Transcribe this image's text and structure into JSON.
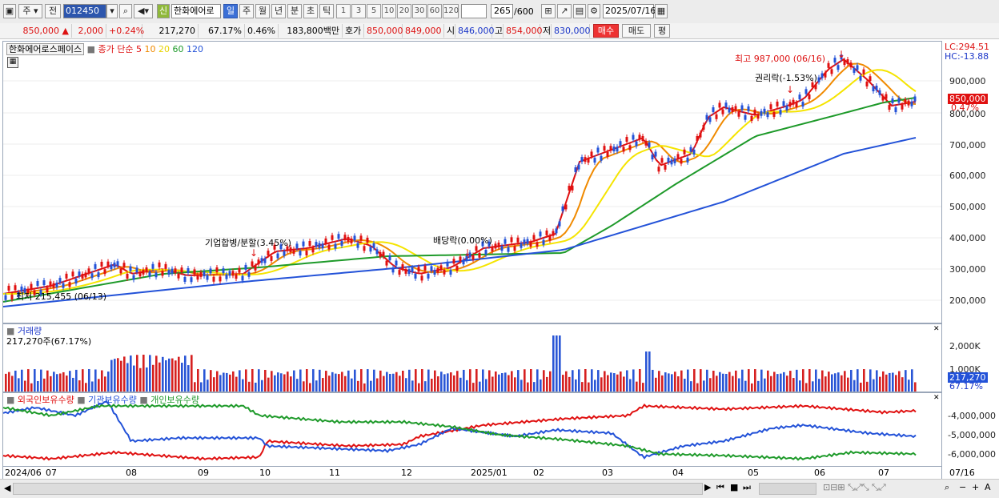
{
  "toolbar": {
    "market_type": "주",
    "prev_label": "전",
    "code": "012450",
    "new_badge": "신",
    "stock_name": "한화에어로",
    "periods": [
      "일",
      "주",
      "월",
      "년",
      "분",
      "초",
      "틱"
    ],
    "active_period": "일",
    "intervals": [
      "1",
      "3",
      "5",
      "10",
      "20",
      "30",
      "60",
      "120"
    ],
    "count": "265",
    "count_total": "/600",
    "date": "2025/07/16"
  },
  "quote": {
    "price": "850,000",
    "change": "2,000",
    "change_pct": "+0.24%",
    "volume": "217,270",
    "volume_ratio": "67.17%",
    "turnover": "0.46%",
    "amount": "183,800백만",
    "bid_label": "호가",
    "ask": "850,000",
    "bid": "849,000",
    "open_label": "시",
    "open": "846,000",
    "high_label": "고",
    "high": "854,000",
    "low_label": "저",
    "low": "830,000",
    "buy_label": "매수",
    "sell_label": "매도",
    "eval_label": "평"
  },
  "price_panel": {
    "stock_title": "한화에어로스페이스",
    "ma_label": "종가 단순",
    "ma_periods": [
      "5",
      "10",
      "20",
      "60",
      "120"
    ],
    "ma_colors": [
      "#e01010",
      "#f08a00",
      "#f5e400",
      "#1e9a2a",
      "#2352d8"
    ],
    "high_annotation": "최고 987,000 (06/16)",
    "low_annotation": "최저 215,455 (06/13)",
    "events": [
      "기업합병/분할(3.45%)",
      "배당락(0.00%)",
      "권리락(-1.53%)"
    ],
    "lc_label": "LC:294.51",
    "hc_label": "HC:-13.88",
    "price_tag": "850,000",
    "pct_tag": "0.47%",
    "y_ticks": [
      "900,000",
      "800,000",
      "700,000",
      "600,000",
      "500,000",
      "400,000",
      "300,000",
      "200,000"
    ]
  },
  "volume_panel": {
    "title": "거래량",
    "subtitle": "217,270주(67.17%)",
    "y_ticks": [
      "2,000K",
      "1,000K"
    ],
    "tag_value": "217,270",
    "tag_pct": "67.17%"
  },
  "holding_panel": {
    "series": [
      "외국인보유수량",
      "기관보유수량",
      "개인보유수량"
    ],
    "colors": [
      "#e01010",
      "#2352d8",
      "#1e9a2a"
    ],
    "y_ticks": [
      "-4,000,000",
      "-5,000,000",
      "-6,000,000"
    ]
  },
  "x_axis": [
    "2024/06",
    "07",
    "08",
    "09",
    "10",
    "11",
    "12",
    "2025/01",
    "02",
    "03",
    "04",
    "05",
    "06",
    "07"
  ],
  "x_axis_end": "07/16"
}
